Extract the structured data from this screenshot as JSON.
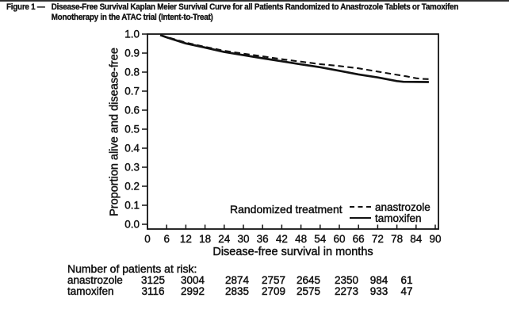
{
  "caption": {
    "label": "Figure 1",
    "dash": "—",
    "line1": "Disease-Free Survival Kaplan Meier Survival Curve for all Patients Randomized to Anastrozole Tablets or Tamoxifen",
    "line2": "Monotherapy in the ATAC trial (Intent-to-Treat)"
  },
  "chart_data": {
    "type": "line",
    "subtype": "kaplan-meier",
    "title": "",
    "x_title": "Disease-free survival in months",
    "y_title": "Proportion alive and disease-free",
    "xlim": [
      0,
      90
    ],
    "ylim": [
      0.0,
      1.0
    ],
    "x_ticks": [
      0,
      6,
      12,
      18,
      24,
      30,
      36,
      42,
      48,
      54,
      60,
      66,
      72,
      78,
      84,
      90
    ],
    "y_ticks": [
      "0.0",
      "0.1",
      "0.2",
      "0.3",
      "0.4",
      "0.5",
      "0.6",
      "0.7",
      "0.8",
      "0.9",
      "1.0"
    ],
    "grid": false,
    "legend": {
      "title": "Randomized treatment",
      "position": "inside-bottom-right",
      "items": [
        {
          "label": "anastrozole",
          "style": "dashed"
        },
        {
          "label": "tamoxifen",
          "style": "solid"
        }
      ]
    },
    "series": [
      {
        "name": "tamoxifen",
        "line": "solid",
        "color": "#121212",
        "points": [
          [
            4,
            0.995
          ],
          [
            6,
            0.983
          ],
          [
            12,
            0.951
          ],
          [
            18,
            0.929
          ],
          [
            24,
            0.906
          ],
          [
            30,
            0.889
          ],
          [
            36,
            0.873
          ],
          [
            42,
            0.857
          ],
          [
            48,
            0.841
          ],
          [
            54,
            0.826
          ],
          [
            60,
            0.807
          ],
          [
            66,
            0.788
          ],
          [
            72,
            0.772
          ],
          [
            78,
            0.753
          ],
          [
            80,
            0.749
          ],
          [
            88,
            0.748
          ]
        ]
      },
      {
        "name": "anastrozole",
        "line": "dashed",
        "color": "#121212",
        "points": [
          [
            4,
            0.995
          ],
          [
            6,
            0.985
          ],
          [
            12,
            0.955
          ],
          [
            18,
            0.933
          ],
          [
            24,
            0.912
          ],
          [
            30,
            0.897
          ],
          [
            36,
            0.883
          ],
          [
            42,
            0.868
          ],
          [
            48,
            0.855
          ],
          [
            54,
            0.842
          ],
          [
            60,
            0.832
          ],
          [
            66,
            0.82
          ],
          [
            72,
            0.803
          ],
          [
            78,
            0.786
          ],
          [
            81,
            0.778
          ],
          [
            84,
            0.768
          ],
          [
            86,
            0.764
          ],
          [
            89,
            0.763
          ]
        ]
      }
    ]
  },
  "risk_table": {
    "header": "Number of patients at risk:",
    "months": [
      0,
      12,
      24,
      36,
      48,
      60,
      72,
      84
    ],
    "rows": [
      {
        "label": "anastrozole",
        "counts": [
          "3125",
          "3004",
          "2874",
          "2757",
          "2645",
          "2350",
          "984",
          "61"
        ]
      },
      {
        "label": "tamoxifen",
        "counts": [
          "3116",
          "2992",
          "2835",
          "2709",
          "2575",
          "2273",
          "933",
          "47"
        ]
      }
    ]
  },
  "colors": {
    "ink": "#121212",
    "background": "#ffffff"
  }
}
